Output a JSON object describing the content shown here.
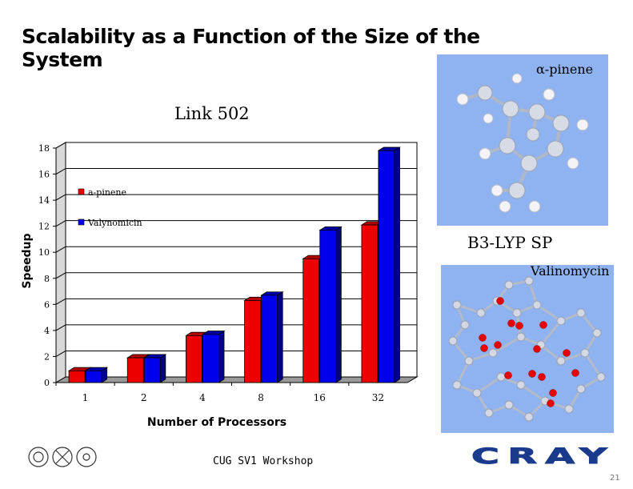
{
  "slide": {
    "title": "Scalability as a Function of the Size of the System",
    "footer": "CUG SV1 Workshop",
    "page_number": "21",
    "brand": "CRAY"
  },
  "images": {
    "pinene_label": "α-pinene",
    "method_label": "B3-LYP SP",
    "valinomycin_label": "Valinomycin"
  },
  "colors": {
    "series1": "#ee0000",
    "series2": "#0000ee",
    "photo_bg": "#8fb2f0",
    "brand": "#1a3a8c"
  },
  "chart_data": {
    "type": "bar",
    "title": "Link 502",
    "xlabel": "Number of Processors",
    "ylabel": "Speedup",
    "categories": [
      "1",
      "2",
      "4",
      "8",
      "16",
      "32"
    ],
    "series": [
      {
        "name": "a-pinene",
        "values": [
          0.9,
          1.9,
          3.6,
          6.3,
          9.5,
          12.1
        ]
      },
      {
        "name": "Valynomicin",
        "values": [
          0.9,
          1.9,
          3.7,
          6.7,
          11.7,
          17.8
        ]
      }
    ],
    "ylim": [
      0,
      18
    ],
    "yticks": [
      0,
      2,
      4,
      6,
      8,
      10,
      12,
      14,
      16,
      18
    ],
    "grid": true,
    "legend": "top-left"
  }
}
